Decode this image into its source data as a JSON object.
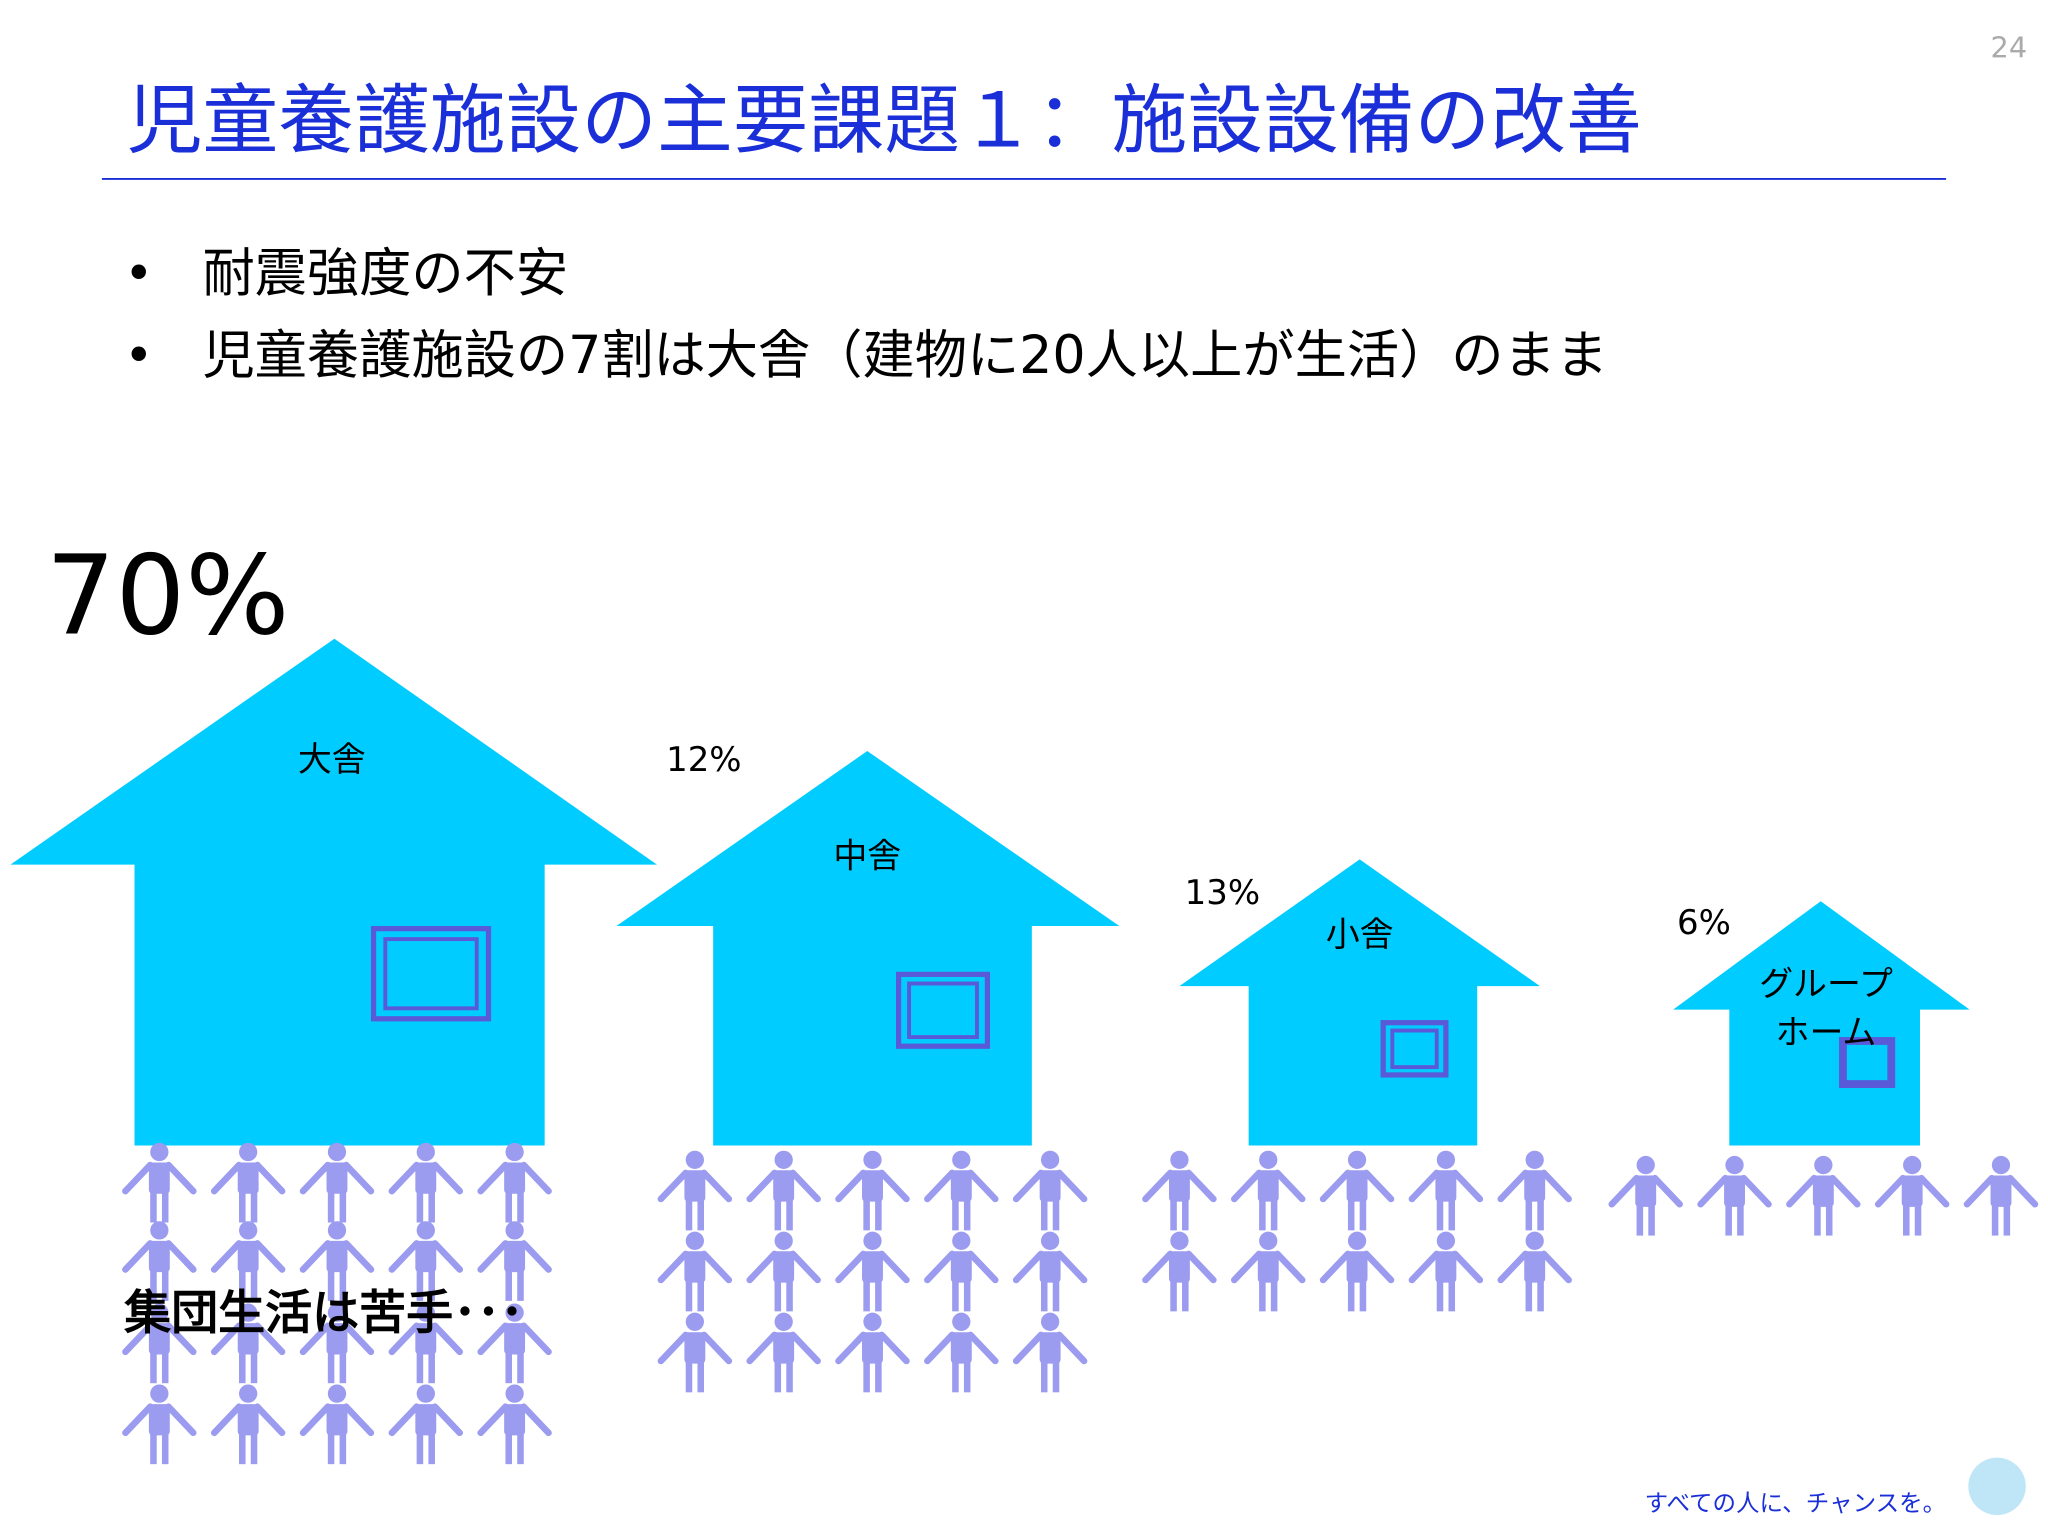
{
  "slide": {
    "page_number": "24",
    "title": "児童養護施設の主要課題１：施設設備の改善",
    "bullets": [
      "耐震強度の不安",
      "児童養護施設の7割は大舎（建物に20人以上が生活）のまま"
    ],
    "houses": [
      {
        "label": "大舎",
        "share": "70%"
      },
      {
        "label": "中舎",
        "share": "12%"
      },
      {
        "label": "小舎",
        "share": "13%"
      },
      {
        "label": [
          "グループ",
          "ホーム"
        ],
        "share": "6%"
      }
    ],
    "caption": "集団生活は苦手･･･",
    "footer": "すべての人に、チャンスを。"
  }
}
